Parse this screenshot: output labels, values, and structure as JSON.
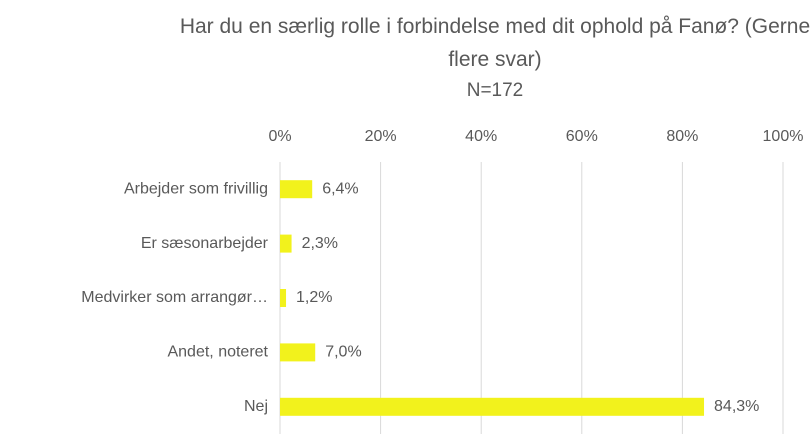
{
  "chart_data": {
    "type": "hbar",
    "title": "Har du en særlig rolle i forbindelse med dit ophold på Fanø? (Gerne flere svar)",
    "subtitle": "N=172",
    "categories": [
      "Arbejder som frivillig",
      "Er sæsonarbejder",
      "Medvirker som arrangør…",
      "Andet, noteret",
      "Nej"
    ],
    "values": [
      6.4,
      2.3,
      1.2,
      7.0,
      84.3
    ],
    "value_labels": [
      "6,4%",
      "2,3%",
      "1,2%",
      "7,0%",
      "84,3%"
    ],
    "color": "#f2f21c",
    "xlim": [
      0,
      100
    ],
    "xticks": [
      {
        "value": 0,
        "label": "0%"
      },
      {
        "value": 20,
        "label": "20%"
      },
      {
        "value": 40,
        "label": "40%"
      },
      {
        "value": 60,
        "label": "60%"
      },
      {
        "value": 80,
        "label": "80%"
      },
      {
        "value": 100,
        "label": "100%"
      }
    ],
    "grid": true
  }
}
